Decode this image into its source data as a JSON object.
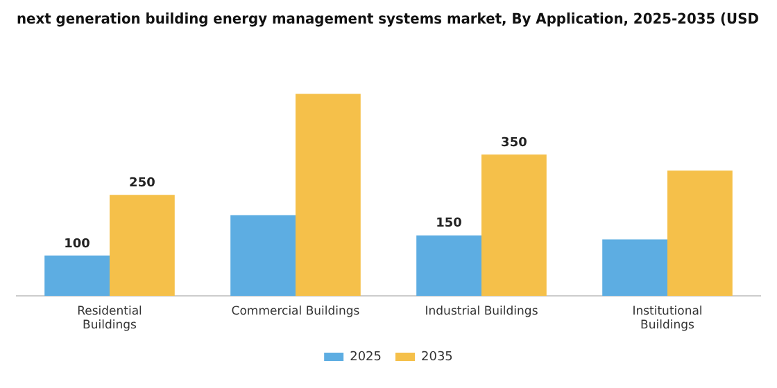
{
  "chart_data": {
    "type": "bar",
    "title": "next generation building energy management systems market, By Application, 2025-2035 (USD",
    "categories": [
      "Residential Buildings",
      "Commercial Buildings",
      "Industrial Buildings",
      "Institutional Buildings"
    ],
    "series": [
      {
        "name": "2025",
        "color": "#5dade2",
        "values": [
          100,
          200,
          150,
          140
        ],
        "value_labels": [
          "100",
          null,
          "150",
          null
        ]
      },
      {
        "name": "2035",
        "color": "#f5c04a",
        "values": [
          250,
          500,
          350,
          310
        ],
        "value_labels": [
          "250",
          null,
          "350",
          null
        ]
      }
    ],
    "legend": "bottom",
    "grid": false
  }
}
